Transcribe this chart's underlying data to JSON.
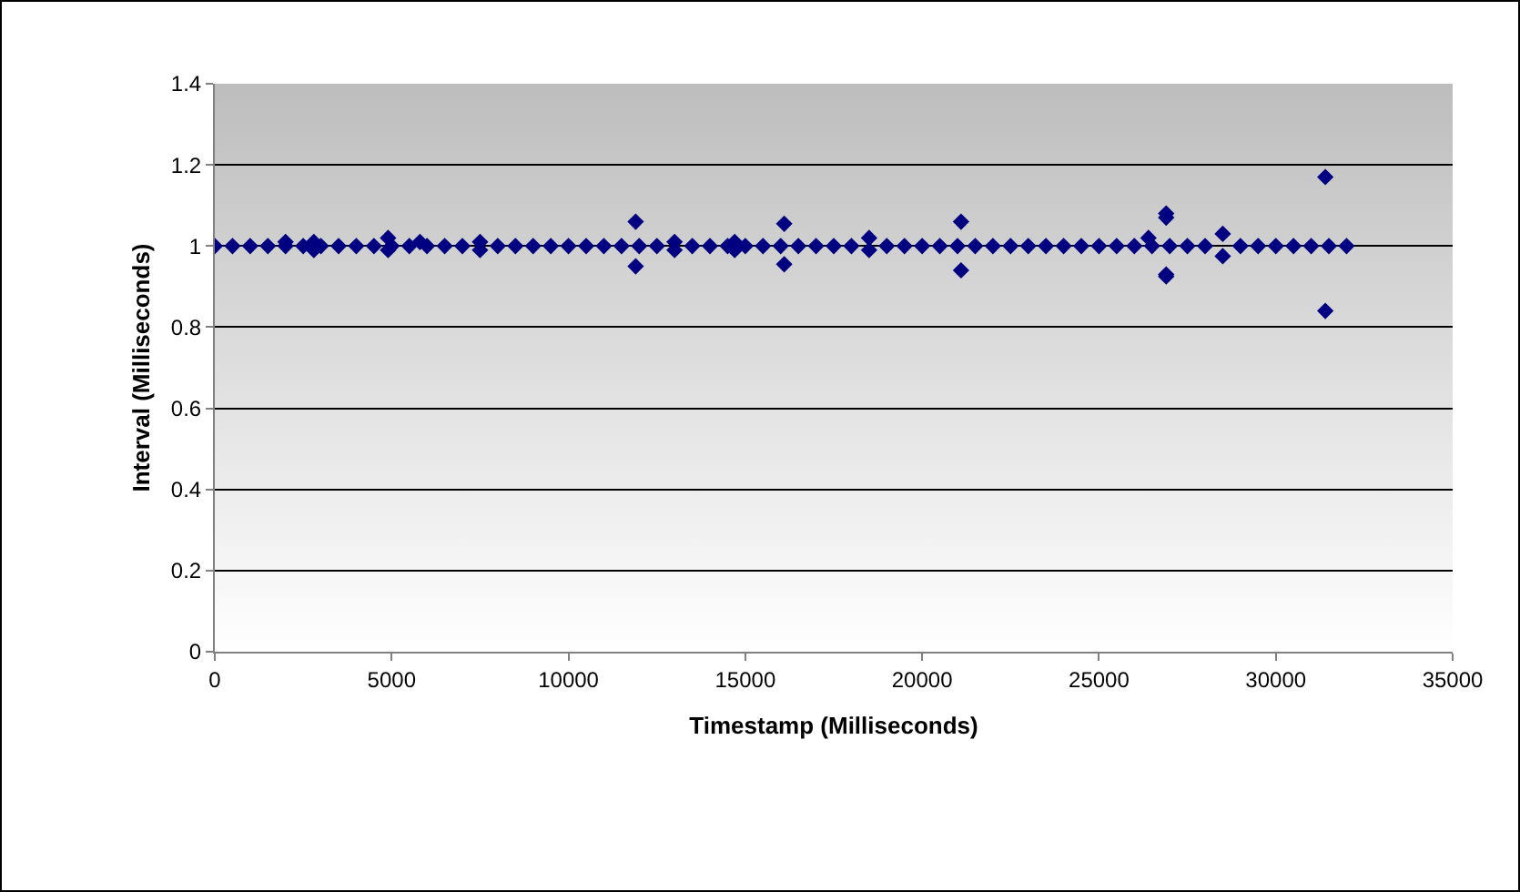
{
  "chart_data": {
    "type": "scatter",
    "xlabel": "Timestamp (Milliseconds)",
    "ylabel": "Interval (Milliseconds)",
    "xlim": [
      0,
      35000
    ],
    "xticks": [
      0,
      5000,
      10000,
      15000,
      20000,
      25000,
      30000,
      35000
    ],
    "ylim": [
      0,
      1.4
    ],
    "yticks": [
      0,
      0.2,
      0.4,
      0.6,
      0.8,
      1,
      1.2,
      1.4
    ],
    "grid": "y",
    "marker": "diamond",
    "series": [
      {
        "color": "#000080",
        "x": [
          0,
          500,
          1000,
          1500,
          2000,
          2000,
          2500,
          2800,
          2800,
          3000,
          3500,
          4000,
          4500,
          4900,
          4900,
          5000,
          5500,
          5800,
          6000,
          6500,
          7000,
          7500,
          7500,
          8000,
          8500,
          9000,
          9500,
          10000,
          10500,
          11000,
          11500,
          11900,
          11900,
          12000,
          12500,
          13000,
          13000,
          13500,
          14000,
          14500,
          14700,
          14700,
          15000,
          15500,
          16000,
          16100,
          16100,
          16500,
          17000,
          17500,
          18000,
          18500,
          18500,
          19000,
          19500,
          20000,
          20500,
          21000,
          21100,
          21100,
          21500,
          22000,
          22500,
          23000,
          23500,
          24000,
          24500,
          25000,
          25500,
          26000,
          26400,
          26500,
          26900,
          26900,
          26900,
          26900,
          27000,
          27500,
          28000,
          28500,
          28500,
          29000,
          29500,
          30000,
          30500,
          31000,
          31400,
          31400,
          31500,
          32000
        ],
        "values": [
          1,
          1,
          1,
          1,
          1,
          1.01,
          1,
          1.01,
          0.99,
          1,
          1,
          1,
          1,
          1.02,
          0.99,
          1,
          1,
          1.01,
          1,
          1,
          1,
          1.01,
          0.99,
          1,
          1,
          1,
          1,
          1,
          1,
          1,
          1,
          1.06,
          0.95,
          1,
          1,
          1.01,
          0.99,
          1,
          1,
          1,
          1.01,
          0.99,
          1,
          1,
          1,
          1.055,
          0.955,
          1,
          1,
          1,
          1,
          1.02,
          0.99,
          1,
          1,
          1,
          1,
          1,
          1.06,
          0.94,
          1,
          1,
          1,
          1,
          1,
          1,
          1,
          1,
          1,
          1,
          1.02,
          1,
          1.08,
          1.07,
          0.93,
          0.925,
          1,
          1,
          1,
          1.03,
          0.975,
          1,
          1,
          1,
          1,
          1,
          1.17,
          0.84,
          1,
          1
        ]
      }
    ]
  }
}
